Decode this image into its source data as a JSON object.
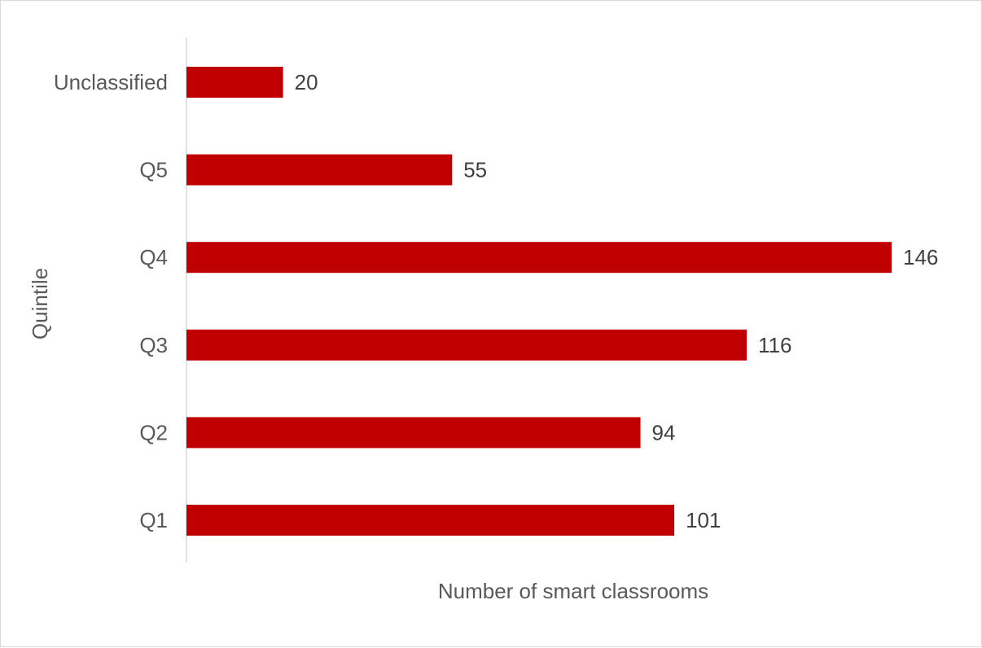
{
  "chart_data": {
    "type": "bar",
    "orientation": "horizontal",
    "categories": [
      "Unclassified",
      "Q5",
      "Q4",
      "Q3",
      "Q2",
      "Q1"
    ],
    "values": [
      20,
      55,
      146,
      116,
      94,
      101
    ],
    "xlabel": "Number of smart classrooms",
    "ylabel": "Quintile",
    "xlim": [
      0,
      146
    ],
    "grid": false,
    "data_labels": true,
    "bar_color": "#c00000"
  }
}
